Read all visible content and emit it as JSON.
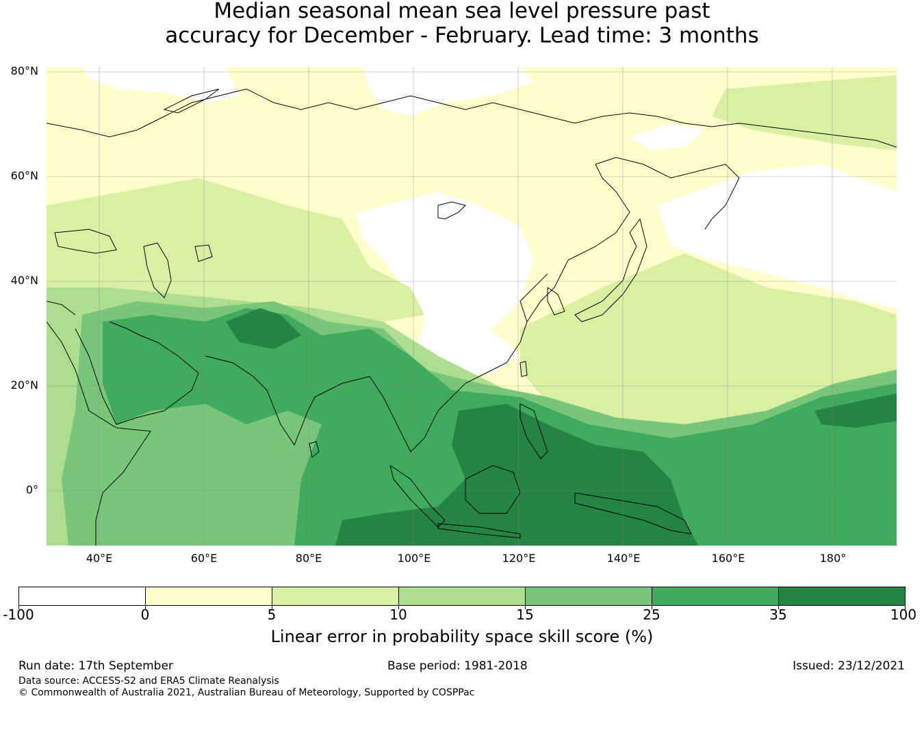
{
  "title": {
    "line1": "Median seasonal mean sea level pressure past",
    "line2": "accuracy for December - February. Lead time: 3 months"
  },
  "map": {
    "lat_labels": [
      "80°N",
      "60°N",
      "40°N",
      "20°N",
      "0°"
    ],
    "lon_labels": [
      "40°E",
      "60°E",
      "80°E",
      "100°E",
      "120°E",
      "140°E",
      "160°E",
      "180°"
    ],
    "extent": {
      "lon": [
        30,
        192
      ],
      "lat": [
        -10,
        81
      ]
    },
    "gridlines": {
      "lon": [
        40,
        60,
        80,
        100,
        120,
        140,
        160,
        180
      ],
      "lat": [
        80,
        60,
        40,
        20,
        0
      ]
    },
    "coastline_color": "#000000"
  },
  "colorbar": {
    "label": "Linear error in probability space skill score (%)",
    "boundaries": [
      "-100",
      "0",
      "5",
      "10",
      "15",
      "25",
      "35",
      "100"
    ],
    "colors": [
      "#ffffff",
      "#ffffcc",
      "#d9f0a3",
      "#addd8e",
      "#78c679",
      "#41ab5d",
      "#238443"
    ]
  },
  "footer": {
    "run_date": "Run date: 17th September",
    "base_period": "Base period: 1981-2018",
    "issued": "Issued: 23/12/2021",
    "data_source": "Data source: ACCESS-S2 and ERA5 Climate Reanalysis",
    "copyright": "© Commonwealth of Australia 2021, Australian Bureau of Meteorology, Supported by COSPPac"
  }
}
